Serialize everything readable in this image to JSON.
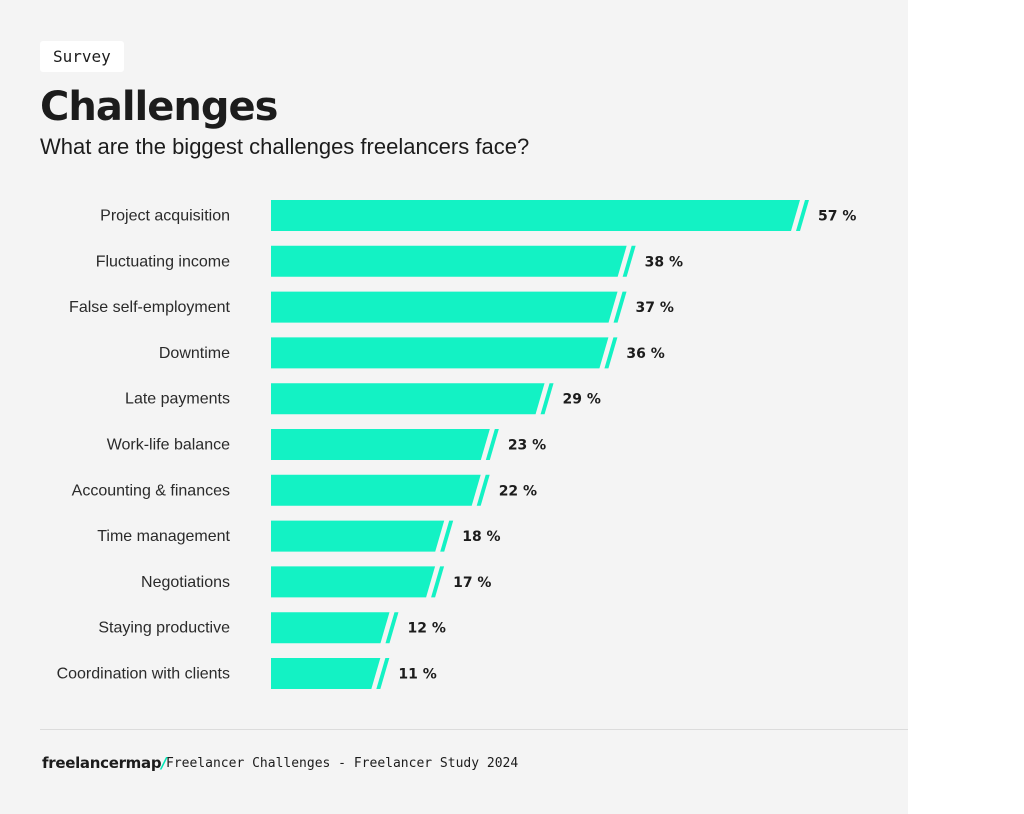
{
  "header": {
    "tag": "Survey",
    "title": "Challenges",
    "subtitle": "What are the biggest challenges freelancers face?"
  },
  "colors": {
    "bar": "#13f2c4",
    "background": "#f4f4f4",
    "text": "#1c1c1c",
    "brand_accent": "#00e8b8"
  },
  "chart_data": {
    "type": "bar",
    "orientation": "horizontal",
    "title": "Challenges",
    "subtitle": "What are the biggest challenges freelancers face?",
    "categories": [
      "Project acquisition",
      "Fluctuating income",
      "False self-employment",
      "Downtime",
      "Late payments",
      "Work-life balance",
      "Accounting & finances",
      "Time management",
      "Negotiations",
      "Staying productive",
      "Coordination with clients"
    ],
    "values": [
      57,
      38,
      37,
      36,
      29,
      23,
      22,
      18,
      17,
      12,
      11
    ],
    "value_labels": [
      "57 %",
      "38 %",
      "37 %",
      "36 %",
      "29 %",
      "23 %",
      "22 %",
      "18 %",
      "17 %",
      "12 %",
      "11 %"
    ],
    "unit": "%",
    "xlim": [
      0,
      60
    ],
    "grid": false
  },
  "footer": {
    "brand": "freelancermap",
    "brand_slash": "/",
    "source": "Freelancer Challenges - Freelancer Study 2024"
  }
}
